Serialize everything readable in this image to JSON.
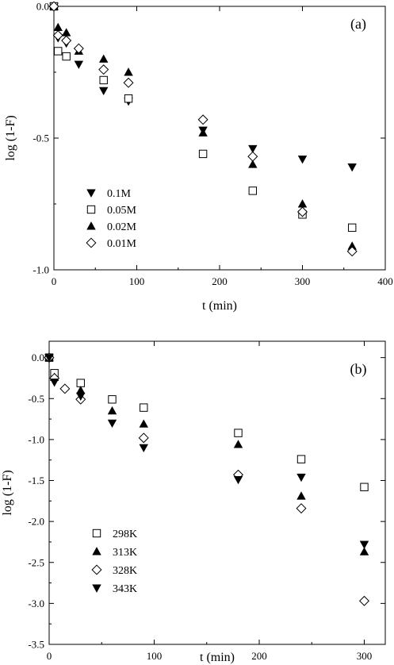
{
  "chart_data": [
    {
      "type": "scatter",
      "panel_label": "(a)",
      "xlabel": "t (min)",
      "ylabel": "log (1-F)",
      "xlim": [
        0,
        400
      ],
      "ylim": [
        -1.0,
        0.0
      ],
      "x_ticks": [
        0,
        100,
        200,
        300,
        400
      ],
      "y_ticks": [
        0.0,
        -0.5,
        -1.0
      ],
      "x_tick_labels": [
        "0",
        "100",
        "200",
        "300",
        "400"
      ],
      "y_tick_labels": [
        "0.0",
        "-0.5",
        "-1.0"
      ],
      "grid": false,
      "legend_position": "bottom-left",
      "series": [
        {
          "name": "0.1M",
          "marker": "triangle-down-filled",
          "points": [
            [
              0,
              0.0
            ],
            [
              5,
              -0.12
            ],
            [
              15,
              -0.14
            ],
            [
              30,
              -0.22
            ],
            [
              60,
              -0.32
            ],
            [
              90,
              -0.36
            ],
            [
              180,
              -0.47
            ],
            [
              240,
              -0.54
            ],
            [
              300,
              -0.58
            ],
            [
              360,
              -0.61
            ]
          ]
        },
        {
          "name": "0.05M",
          "marker": "square-open",
          "points": [
            [
              0,
              0.0
            ],
            [
              5,
              -0.17
            ],
            [
              15,
              -0.19
            ],
            [
              60,
              -0.28
            ],
            [
              90,
              -0.35
            ],
            [
              180,
              -0.56
            ],
            [
              240,
              -0.7
            ],
            [
              300,
              -0.79
            ],
            [
              360,
              -0.84
            ]
          ]
        },
        {
          "name": "0.02M",
          "marker": "triangle-up-filled",
          "points": [
            [
              0,
              0.0
            ],
            [
              5,
              -0.08
            ],
            [
              15,
              -0.1
            ],
            [
              30,
              -0.17
            ],
            [
              60,
              -0.2
            ],
            [
              90,
              -0.25
            ],
            [
              180,
              -0.48
            ],
            [
              240,
              -0.6
            ],
            [
              300,
              -0.75
            ],
            [
              360,
              -0.91
            ]
          ]
        },
        {
          "name": "0.01M",
          "marker": "diamond-open",
          "points": [
            [
              0,
              0.0
            ],
            [
              5,
              -0.11
            ],
            [
              15,
              -0.13
            ],
            [
              30,
              -0.16
            ],
            [
              60,
              -0.24
            ],
            [
              90,
              -0.29
            ],
            [
              180,
              -0.43
            ],
            [
              240,
              -0.57
            ],
            [
              300,
              -0.78
            ],
            [
              360,
              -0.93
            ]
          ]
        }
      ]
    },
    {
      "type": "scatter",
      "panel_label": "(b)",
      "xlabel": "t (min)",
      "ylabel": "log (1-F)",
      "xlim": [
        0,
        320
      ],
      "ylim": [
        -3.5,
        0.2
      ],
      "x_ticks": [
        0,
        100,
        200,
        300
      ],
      "y_ticks": [
        0.0,
        -0.5,
        -1.0,
        -1.5,
        -2.0,
        -2.5,
        -3.0,
        -3.5
      ],
      "x_tick_labels": [
        "0",
        "100",
        "200",
        "300"
      ],
      "y_tick_labels": [
        "0.0",
        "-0.5",
        "-1.0",
        "-1.5",
        "-2.0",
        "-2.5",
        "-3.0",
        "-3.5"
      ],
      "grid": false,
      "legend_position": "bottom-left",
      "series": [
        {
          "name": "298K",
          "marker": "square-open",
          "points": [
            [
              0,
              0.0
            ],
            [
              5,
              -0.19
            ],
            [
              30,
              -0.31
            ],
            [
              60,
              -0.51
            ],
            [
              90,
              -0.61
            ],
            [
              180,
              -0.92
            ],
            [
              240,
              -1.24
            ],
            [
              300,
              -1.58
            ]
          ]
        },
        {
          "name": "313K",
          "marker": "triangle-up-filled",
          "points": [
            [
              0,
              0.0
            ],
            [
              5,
              -0.24
            ],
            [
              30,
              -0.4
            ],
            [
              60,
              -0.65
            ],
            [
              90,
              -0.81
            ],
            [
              180,
              -1.06
            ],
            [
              240,
              -1.69
            ],
            [
              300,
              -2.37
            ]
          ]
        },
        {
          "name": "328K",
          "marker": "diamond-open",
          "points": [
            [
              0,
              0.0
            ],
            [
              5,
              -0.25
            ],
            [
              15,
              -0.38
            ],
            [
              30,
              -0.51
            ],
            [
              90,
              -0.98
            ],
            [
              180,
              -1.43
            ],
            [
              240,
              -1.84
            ],
            [
              300,
              -2.97
            ]
          ]
        },
        {
          "name": "343K",
          "marker": "triangle-down-filled",
          "points": [
            [
              0,
              0.0
            ],
            [
              5,
              -0.3
            ],
            [
              30,
              -0.47
            ],
            [
              60,
              -0.8
            ],
            [
              90,
              -1.1
            ],
            [
              180,
              -1.49
            ],
            [
              240,
              -1.46
            ],
            [
              300,
              -2.28
            ]
          ]
        }
      ]
    }
  ]
}
